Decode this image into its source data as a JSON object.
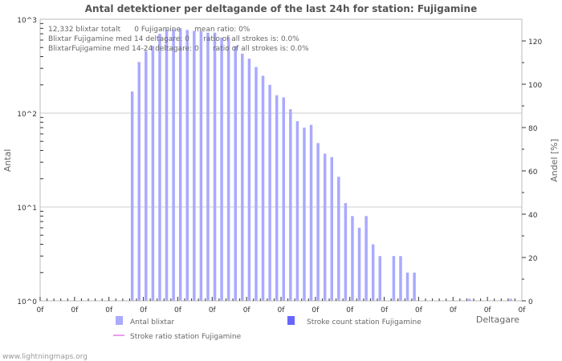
{
  "chart_data": {
    "type": "bar",
    "title": "Antal detektioner per deltagande of the last 24h for station: Fujigamine",
    "xlabel": "Deltagare",
    "ylabel": "Antal",
    "y2label": "Andel [%]",
    "yscale": "log",
    "ylim": [
      1,
      1000
    ],
    "y_ticks": [
      "10^0",
      "10^1",
      "10^2",
      "10^3"
    ],
    "y2lim": [
      0,
      130
    ],
    "y2_ticks": [
      "0",
      "20",
      "40",
      "60",
      "80",
      "100",
      "120"
    ],
    "x_tick_label": "0f",
    "x_tick_count": 15,
    "grid": true,
    "info_lines": [
      "12,332 blixtar totalt      0 Fujigamine      mean ratio: 0%",
      "Blixtar Fujigamine med 14 deltagare: 0      ratio of all strokes is: 0.0%",
      "BlixtarFujigamine med 14-24 deltagare: 0      ratio of all strokes is: 0.0%"
    ],
    "series": [
      {
        "name": "Antal blixtar",
        "color": "#aaaaff",
        "values": [
          0,
          0,
          0,
          0,
          0,
          0,
          0,
          0,
          0,
          0,
          0,
          0,
          0,
          170,
          350,
          460,
          520,
          700,
          780,
          780,
          800,
          770,
          750,
          750,
          720,
          720,
          640,
          640,
          520,
          430,
          380,
          310,
          250,
          200,
          155,
          147,
          110,
          82,
          70,
          75,
          48,
          37,
          34,
          21,
          11,
          8,
          6,
          8,
          4,
          3,
          0,
          3,
          3,
          2,
          2,
          0,
          0,
          0,
          0,
          0,
          0,
          0,
          1,
          0,
          0,
          0,
          0,
          0,
          1,
          0
        ]
      },
      {
        "name": "Stroke count station Fujigamine",
        "color": "#6666ff",
        "values": []
      },
      {
        "name": "Stroke ratio station Fujigamine",
        "color": "#ee99ee",
        "values": []
      }
    ]
  },
  "footer": "www.lightningmaps.org"
}
